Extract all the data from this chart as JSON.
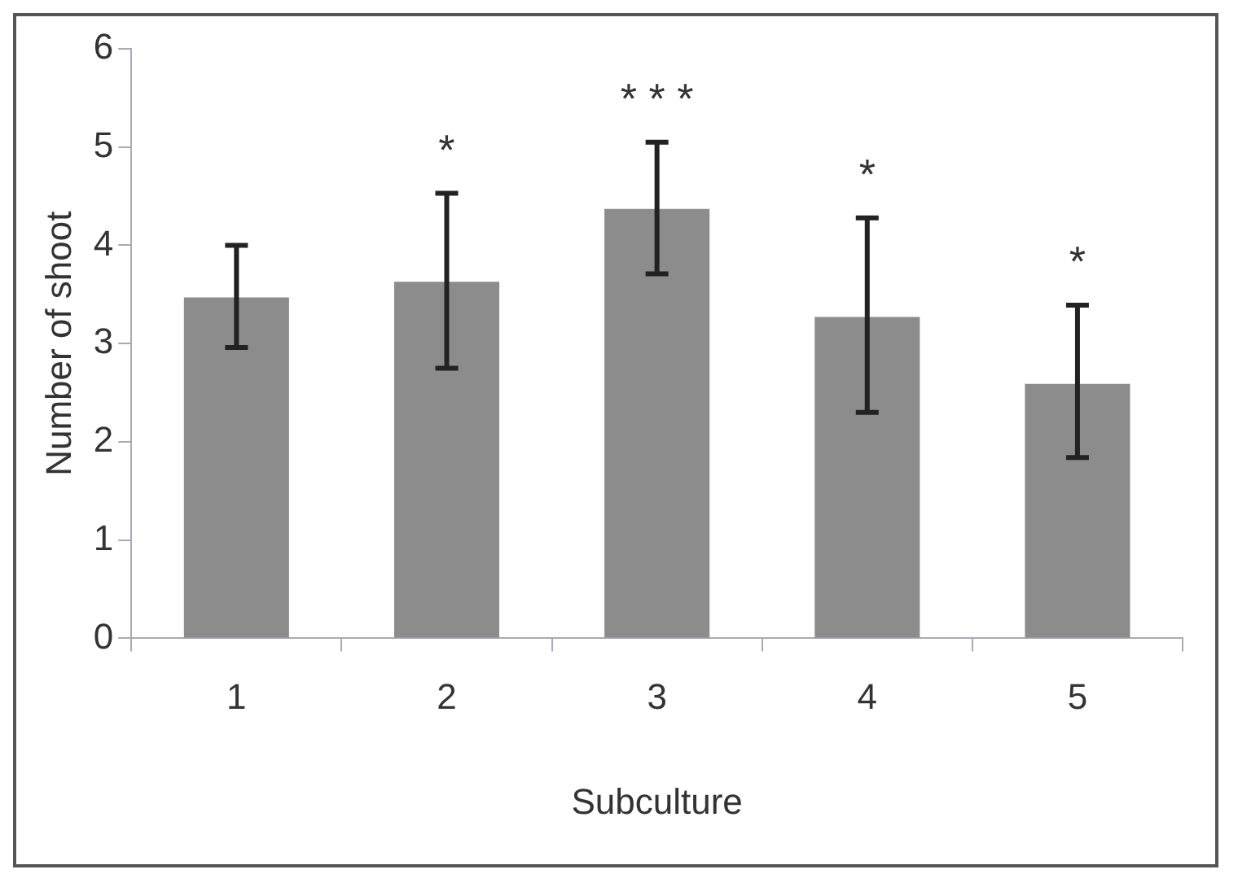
{
  "chart_data": {
    "type": "bar",
    "xlabel": "Subculture",
    "ylabel": "Number of shoot",
    "categories": [
      "1",
      "2",
      "3",
      "4",
      "5"
    ],
    "values": [
      3.47,
      3.63,
      4.37,
      3.27,
      2.59
    ],
    "errors": [
      [
        2.96,
        4.0
      ],
      [
        2.75,
        4.53
      ],
      [
        3.71,
        5.05
      ],
      [
        2.3,
        4.28
      ],
      [
        1.84,
        3.39
      ]
    ],
    "color": "#8c8c8c",
    "ylim": [
      0,
      6
    ],
    "yticks": [
      0,
      1,
      2,
      3,
      4,
      5,
      6
    ],
    "grid": false,
    "legend": false,
    "value_labels": [
      null,
      "*",
      "* * *",
      "*",
      "*"
    ]
  }
}
